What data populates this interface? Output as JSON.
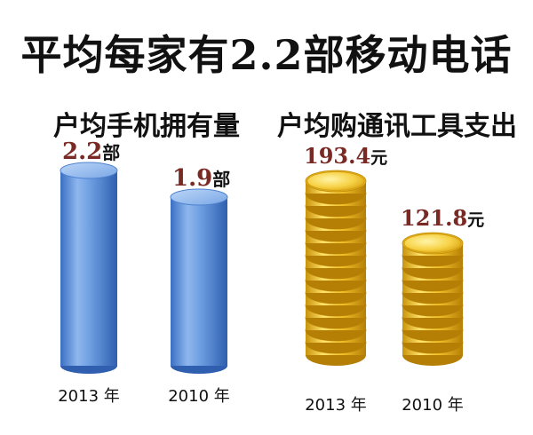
{
  "title": "平均每家有2.2部移动电话",
  "chart_data": [
    {
      "type": "bar",
      "title": "户均手机拥有量",
      "categories": [
        "2013 年",
        "2010 年"
      ],
      "values": [
        2.2,
        1.9
      ],
      "value_labels": [
        "2.2",
        "1.9"
      ],
      "unit": "部",
      "ylim": [
        0,
        2.2
      ],
      "color": "#5b8fd6"
    },
    {
      "type": "bar",
      "title": "户均购通讯工具支出",
      "categories": [
        "2013 年",
        "2010 年"
      ],
      "values": [
        193.4,
        121.8
      ],
      "value_labels": [
        "193.4",
        "121.8"
      ],
      "unit": "元",
      "ylim": [
        0,
        193.4
      ],
      "color": "#e8b820"
    }
  ]
}
